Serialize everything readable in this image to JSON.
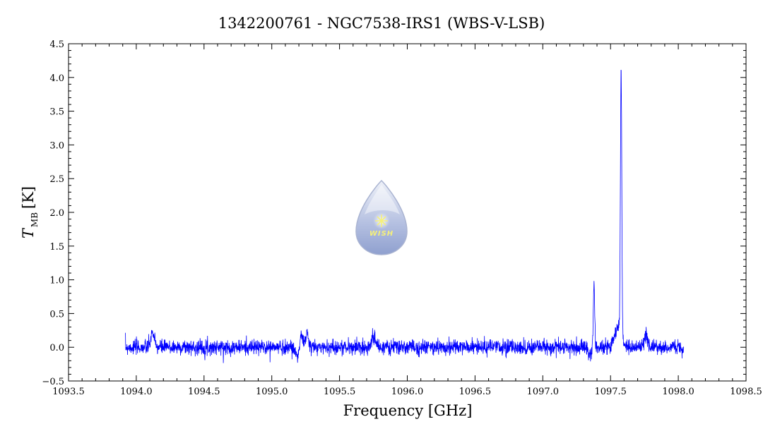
{
  "chart_data": {
    "type": "line",
    "title": "1342200761 - NGC7538-IRS1 (WBS-V-LSB)",
    "xlabel": "Frequency [GHz]",
    "ylabel_main": "T",
    "ylabel_sub": "MB",
    "ylabel_unit": "[K]",
    "xlim": [
      1093.5,
      1098.5
    ],
    "ylim": [
      -0.5,
      4.5
    ],
    "x_ticks": [
      "1093.5",
      "1094.0",
      "1094.5",
      "1095.0",
      "1095.5",
      "1096.0",
      "1096.5",
      "1097.0",
      "1097.5",
      "1098.0",
      "1098.5"
    ],
    "y_ticks": [
      "−0.5",
      "0.0",
      "0.5",
      "1.0",
      "1.5",
      "2.0",
      "2.5",
      "3.0",
      "3.5",
      "4.0",
      "4.5"
    ],
    "line_color": "#0000ff",
    "x_range": [
      1093.92,
      1098.04
    ],
    "noise_rms": 0.055,
    "features": [
      {
        "x": 1094.12,
        "y": 0.22,
        "width": 0.012
      },
      {
        "x": 1095.19,
        "y": -0.12,
        "width": 0.015
      },
      {
        "x": 1095.22,
        "y": 0.18,
        "width": 0.012
      },
      {
        "x": 1095.26,
        "y": 0.2,
        "width": 0.01
      },
      {
        "x": 1095.75,
        "y": 0.15,
        "width": 0.015
      },
      {
        "x": 1097.345,
        "y": -0.1,
        "width": 0.015
      },
      {
        "x": 1097.378,
        "y": 0.99,
        "width": 0.005
      },
      {
        "x": 1097.555,
        "y": 0.3,
        "width": 0.025
      },
      {
        "x": 1097.578,
        "y": 3.9,
        "width": 0.005
      },
      {
        "x": 1097.762,
        "y": 0.2,
        "width": 0.01
      }
    ],
    "grid": false,
    "legend": "none"
  },
  "logo": {
    "text": "WISH",
    "colors": {
      "drop_top": "#e8ecf4",
      "drop_bottom": "#8d9fd0",
      "drop_edge": "#9aa6c8",
      "star": "#f5f07a"
    }
  }
}
